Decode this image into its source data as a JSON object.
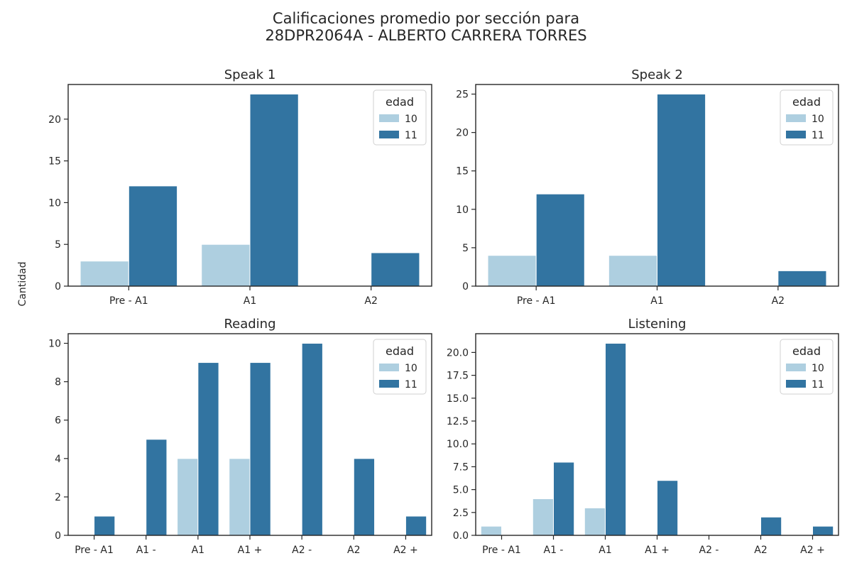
{
  "figure": {
    "suptitle_line1": "Calificaciones promedio por sección para",
    "suptitle_line2": "28DPR2064A - ALBERTO CARRERA TORRES",
    "ylabel": "Cantidad"
  },
  "colors": {
    "age_10": "#aecfe0",
    "age_11": "#3274a1",
    "axis": "#262626"
  },
  "chart_data": [
    {
      "type": "bar",
      "title": "Speak 1",
      "categories": [
        "Pre - A1",
        "A1",
        "A2"
      ],
      "series": [
        {
          "name": "10",
          "values": [
            3,
            5,
            0
          ]
        },
        {
          "name": "11",
          "values": [
            12,
            23,
            4
          ]
        }
      ],
      "yticks": [
        0,
        5,
        10,
        15,
        20
      ],
      "ytick_labels": [
        "0",
        "5",
        "10",
        "15",
        "20"
      ],
      "ylim": [
        0,
        24.15
      ],
      "legend": {
        "title": "edad",
        "entries": [
          "10",
          "11"
        ],
        "position": "top-right"
      }
    },
    {
      "type": "bar",
      "title": "Speak 2",
      "categories": [
        "Pre - A1",
        "A1",
        "A2"
      ],
      "series": [
        {
          "name": "10",
          "values": [
            4,
            4,
            0
          ]
        },
        {
          "name": "11",
          "values": [
            12,
            25,
            2
          ]
        }
      ],
      "yticks": [
        0,
        5,
        10,
        15,
        20,
        25
      ],
      "ytick_labels": [
        "0",
        "5",
        "10",
        "15",
        "20",
        "25"
      ],
      "ylim": [
        0,
        26.25
      ],
      "legend": {
        "title": "edad",
        "entries": [
          "10",
          "11"
        ],
        "position": "top-right"
      }
    },
    {
      "type": "bar",
      "title": "Reading",
      "categories": [
        "Pre - A1",
        "A1 -",
        "A1",
        "A1 +",
        "A2 -",
        "A2",
        "A2 +"
      ],
      "series": [
        {
          "name": "10",
          "values": [
            0,
            0,
            4,
            4,
            0,
            0,
            0
          ]
        },
        {
          "name": "11",
          "values": [
            1,
            5,
            9,
            9,
            10,
            4,
            1
          ]
        }
      ],
      "yticks": [
        0,
        2,
        4,
        6,
        8,
        10
      ],
      "ytick_labels": [
        "0",
        "2",
        "4",
        "6",
        "8",
        "10"
      ],
      "ylim": [
        0,
        10.5
      ],
      "legend": {
        "title": "edad",
        "entries": [
          "10",
          "11"
        ],
        "position": "top-right"
      }
    },
    {
      "type": "bar",
      "title": "Listening",
      "categories": [
        "Pre - A1",
        "A1 -",
        "A1",
        "A1 +",
        "A2 -",
        "A2",
        "A2 +"
      ],
      "series": [
        {
          "name": "10",
          "values": [
            1,
            4,
            3,
            0,
            0,
            0,
            0
          ]
        },
        {
          "name": "11",
          "values": [
            0,
            8,
            21,
            6,
            0,
            2,
            1
          ]
        }
      ],
      "yticks": [
        0,
        2.5,
        5,
        7.5,
        10,
        12.5,
        15,
        17.5,
        20
      ],
      "ytick_labels": [
        "0.0",
        "2.5",
        "5.0",
        "7.5",
        "10.0",
        "12.5",
        "15.0",
        "17.5",
        "20.0"
      ],
      "ylim": [
        0,
        22.05
      ],
      "legend": {
        "title": "edad",
        "entries": [
          "10",
          "11"
        ],
        "position": "top-right"
      }
    }
  ]
}
